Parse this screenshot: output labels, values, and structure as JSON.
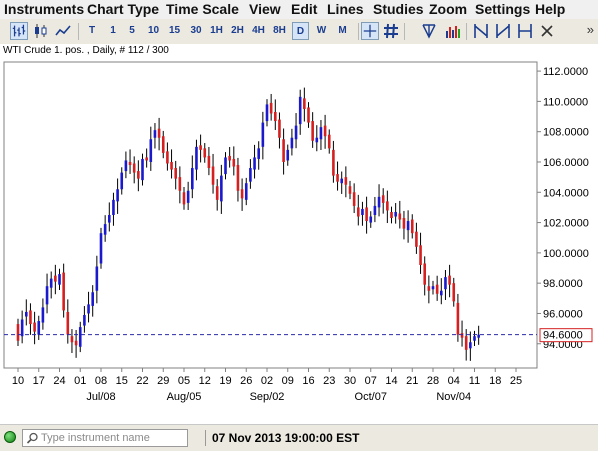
{
  "menu": [
    "Instruments",
    "Chart Type",
    "Time Scale",
    "View",
    "Edit",
    "Lines",
    "Studies",
    "Zoom",
    "Settings",
    "Help"
  ],
  "toolbar": {
    "timeframes": [
      "T",
      "1",
      "5",
      "10",
      "15",
      "30",
      "1H",
      "2H",
      "4H",
      "8H",
      "D",
      "W",
      "M"
    ],
    "active_timeframe": "D",
    "overflow": "»"
  },
  "chart_header": "WTI Crude 1. pos. , Daily, # 112 / 300",
  "status": {
    "search_placeholder": "Type instrument name",
    "datetime": "07 Nov 2013 19:00:00 EST"
  },
  "colors": {
    "up": "#1a1acc",
    "down": "#d42020",
    "wick": "#000000",
    "current_line": "#2a2aaa",
    "current_label_border": "#d42020",
    "status_ok": "#22a022"
  },
  "icons": [
    "bar-chart-icon",
    "candlestick-icon",
    "line-chart-icon",
    "crosshair-icon",
    "hash-grid-icon",
    "pitchfork-icon",
    "volume-bars-icon",
    "tool-a-icon",
    "tool-b-icon",
    "tool-c-icon",
    "tool-d-icon",
    "cursor-tool-icon",
    "overflow-icon",
    "status-indicator-icon",
    "search-icon"
  ],
  "chart_data": {
    "type": "candlestick",
    "instrument": "WTI Crude 1. pos.",
    "interval": "Daily",
    "x_tick_labels": [
      "10",
      "17",
      "24",
      "01",
      "08",
      "15",
      "22",
      "29",
      "05",
      "12",
      "19",
      "26",
      "02",
      "09",
      "16",
      "23",
      "30",
      "07",
      "14",
      "21",
      "28",
      "04",
      "11",
      "18",
      "25"
    ],
    "x_month_labels": [
      {
        "label": "Jul/08",
        "at_tick": 4
      },
      {
        "label": "Aug/05",
        "at_tick": 8
      },
      {
        "label": "Sep/02",
        "at_tick": 12
      },
      {
        "label": "Oct/07",
        "at_tick": 17
      },
      {
        "label": "Nov/04",
        "at_tick": 21
      }
    ],
    "y_tick_values": [
      "94.0000",
      "96.0000",
      "98.0000",
      "100.0000",
      "102.0000",
      "104.0000",
      "106.0000",
      "108.0000",
      "110.0000",
      "112.0000"
    ],
    "ylim": [
      92.4,
      112.6
    ],
    "current_price": 94.6,
    "current_price_label": "94.6000",
    "grid": false,
    "trading_days_per_week": 5,
    "first_bar_weekday_offset": 0,
    "closes": [
      94.2,
      95.6,
      96.1,
      95.3,
      94.8,
      95.5,
      96.4,
      97.8,
      98.3,
      98.1,
      98.6,
      96.2,
      94.6,
      94.1,
      93.9,
      95.1,
      95.9,
      96.6,
      97.4,
      99.1,
      101.3,
      101.9,
      102.5,
      103.5,
      104.2,
      105.3,
      106.1,
      105.8,
      105.3,
      104.9,
      106.2,
      106.1,
      107.5,
      108.1,
      107.6,
      106.6,
      105.9,
      105.5,
      104.9,
      104.1,
      103.2,
      104.1,
      105.6,
      107.0,
      106.8,
      106.3,
      105.6,
      104.5,
      103.5,
      105.1,
      106.3,
      106.1,
      105.7,
      104.1,
      103.6,
      104.6,
      105.6,
      106.3,
      106.9,
      108.6,
      109.8,
      109.2,
      108.7,
      107.6,
      106.0,
      106.8,
      107.6,
      108.4,
      110.3,
      109.5,
      108.6,
      107.4,
      107.6,
      108.3,
      107.7,
      106.9,
      105.1,
      104.7,
      104.9,
      104.5,
      103.9,
      103.1,
      102.4,
      102.9,
      102.1,
      102.4,
      103.1,
      103.7,
      103.3,
      102.8,
      102.3,
      102.7,
      102.2,
      101.6,
      102.1,
      101.3,
      100.4,
      99.2,
      97.9,
      97.5,
      97.8,
      97.3,
      97.5,
      98.4,
      97.9,
      96.8,
      94.6,
      94.4,
      93.6,
      94.1,
      94.5,
      94.6
    ],
    "opens": [
      95.3,
      94.5,
      95.8,
      96.2,
      95.4,
      94.6,
      95.4,
      96.6,
      97.7,
      98.5,
      97.9,
      98.7,
      96.1,
      94.5,
      94.2,
      93.8,
      95.2,
      96.0,
      96.5,
      97.5,
      99.3,
      101.2,
      102.0,
      102.5,
      103.4,
      104.2,
      105.4,
      106.0,
      105.9,
      105.4,
      104.8,
      106.3,
      106.0,
      107.6,
      108.2,
      107.7,
      106.7,
      106.0,
      105.6,
      105.0,
      104.0,
      103.3,
      104.2,
      105.5,
      107.1,
      106.9,
      106.4,
      105.7,
      104.4,
      103.4,
      105.2,
      106.4,
      106.2,
      105.8,
      104.2,
      103.5,
      104.7,
      105.5,
      106.2,
      107.0,
      108.7,
      109.9,
      109.3,
      108.8,
      107.5,
      106.1,
      106.9,
      107.5,
      108.5,
      110.2,
      109.6,
      108.7,
      107.3,
      107.5,
      108.4,
      107.8,
      106.8,
      105.2,
      104.6,
      105.0,
      104.4,
      104.0,
      103.0,
      102.5,
      103.0,
      102.0,
      102.5,
      103.0,
      103.8,
      103.4,
      102.7,
      102.4,
      102.6,
      102.3,
      101.5,
      102.2,
      101.4,
      100.5,
      99.3,
      97.8,
      97.6,
      97.9,
      97.2,
      97.6,
      98.5,
      98.0,
      96.7,
      94.7,
      94.5,
      93.7,
      94.2,
      94.4
    ]
  }
}
